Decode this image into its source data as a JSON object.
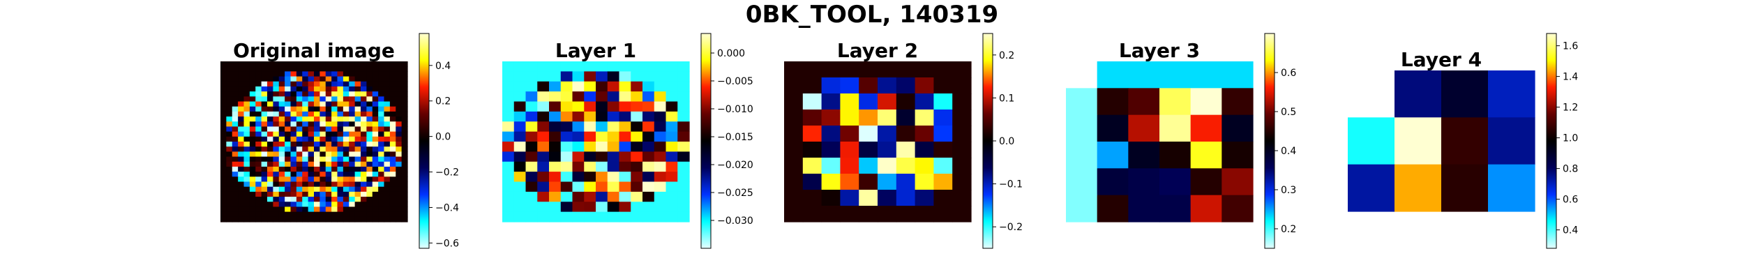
{
  "figure": {
    "title": "0BK_TOOL, 140319",
    "colormap_stops": [
      "#e6ffff",
      "#00ffff",
      "#0033ff",
      "#00005a",
      "#000000",
      "#640000",
      "#ff1e00",
      "#ffff00",
      "#ffffd2"
    ]
  },
  "chart_data": [
    {
      "type": "heatmap",
      "title": "Original image",
      "rows": 32,
      "cols": 32,
      "mask": "disk",
      "background_value": 0.0,
      "value_range": [
        -0.63,
        0.58
      ],
      "colorbar": {
        "ticks": [
          0.4,
          0.2,
          0.0,
          -0.2,
          -0.4,
          -0.6
        ],
        "tick_labels": [
          "0.4",
          "0.2",
          "0.0",
          "−0.2",
          "−0.4",
          "−0.6"
        ]
      },
      "values_note_seed": 17
    },
    {
      "type": "heatmap",
      "title": "Layer 1",
      "rows": 16,
      "cols": 16,
      "mask": "disk",
      "background_value": -0.031,
      "value_range": [
        -0.035,
        0.0035
      ],
      "colorbar": {
        "ticks": [
          0.0,
          -0.005,
          -0.01,
          -0.015,
          -0.02,
          -0.025,
          -0.03
        ],
        "tick_labels": [
          "0.000",
          "−0.005",
          "−0.010",
          "−0.015",
          "−0.020",
          "−0.025",
          "−0.030"
        ]
      },
      "values_note_seed": 42
    },
    {
      "type": "heatmap",
      "title": "Layer 2",
      "rows": 10,
      "cols": 10,
      "mask": "inner",
      "background_value": 0.02,
      "value_range": [
        -0.25,
        0.25
      ],
      "colorbar": {
        "ticks": [
          0.2,
          0.1,
          0.0,
          -0.1,
          -0.2
        ],
        "tick_labels": [
          "0.2",
          "0.1",
          "0.0",
          "−0.1",
          "−0.2"
        ]
      },
      "values_note_seed": 99
    },
    {
      "type": "heatmap",
      "title": "Layer 3",
      "rows": 6,
      "cols": 6,
      "value_range": [
        0.15,
        0.7
      ],
      "colorbar": {
        "ticks": [
          0.6,
          0.5,
          0.4,
          0.3,
          0.2
        ],
        "tick_labels": [
          "0.6",
          "0.5",
          "0.4",
          "0.3",
          "0.2"
        ]
      },
      "values": [
        [
          null,
          0.23,
          0.23,
          0.23,
          0.23,
          0.23
        ],
        [
          0.18,
          0.45,
          0.48,
          0.66,
          0.7,
          0.46
        ],
        [
          0.18,
          0.4,
          0.53,
          0.68,
          0.56,
          0.4
        ],
        [
          0.18,
          0.25,
          0.4,
          0.44,
          0.64,
          0.44
        ],
        [
          0.18,
          0.38,
          0.37,
          0.36,
          0.45,
          0.51
        ],
        [
          0.18,
          0.45,
          0.37,
          0.37,
          0.54,
          0.47
        ]
      ]
    },
    {
      "type": "heatmap",
      "title": "Layer 4",
      "rows": 3,
      "cols": 4,
      "value_range": [
        0.28,
        1.68
      ],
      "colorbar": {
        "ticks": [
          1.6,
          1.4,
          1.2,
          1.0,
          0.8,
          0.6,
          0.4
        ],
        "tick_labels": [
          "1.6",
          "1.4",
          "1.2",
          "1.0",
          "0.8",
          "0.6",
          "0.4"
        ]
      },
      "values": [
        [
          null,
          0.77,
          0.89,
          0.7
        ],
        [
          0.44,
          1.68,
          1.07,
          0.75
        ],
        [
          0.73,
          1.44,
          1.05,
          0.55
        ]
      ]
    }
  ]
}
